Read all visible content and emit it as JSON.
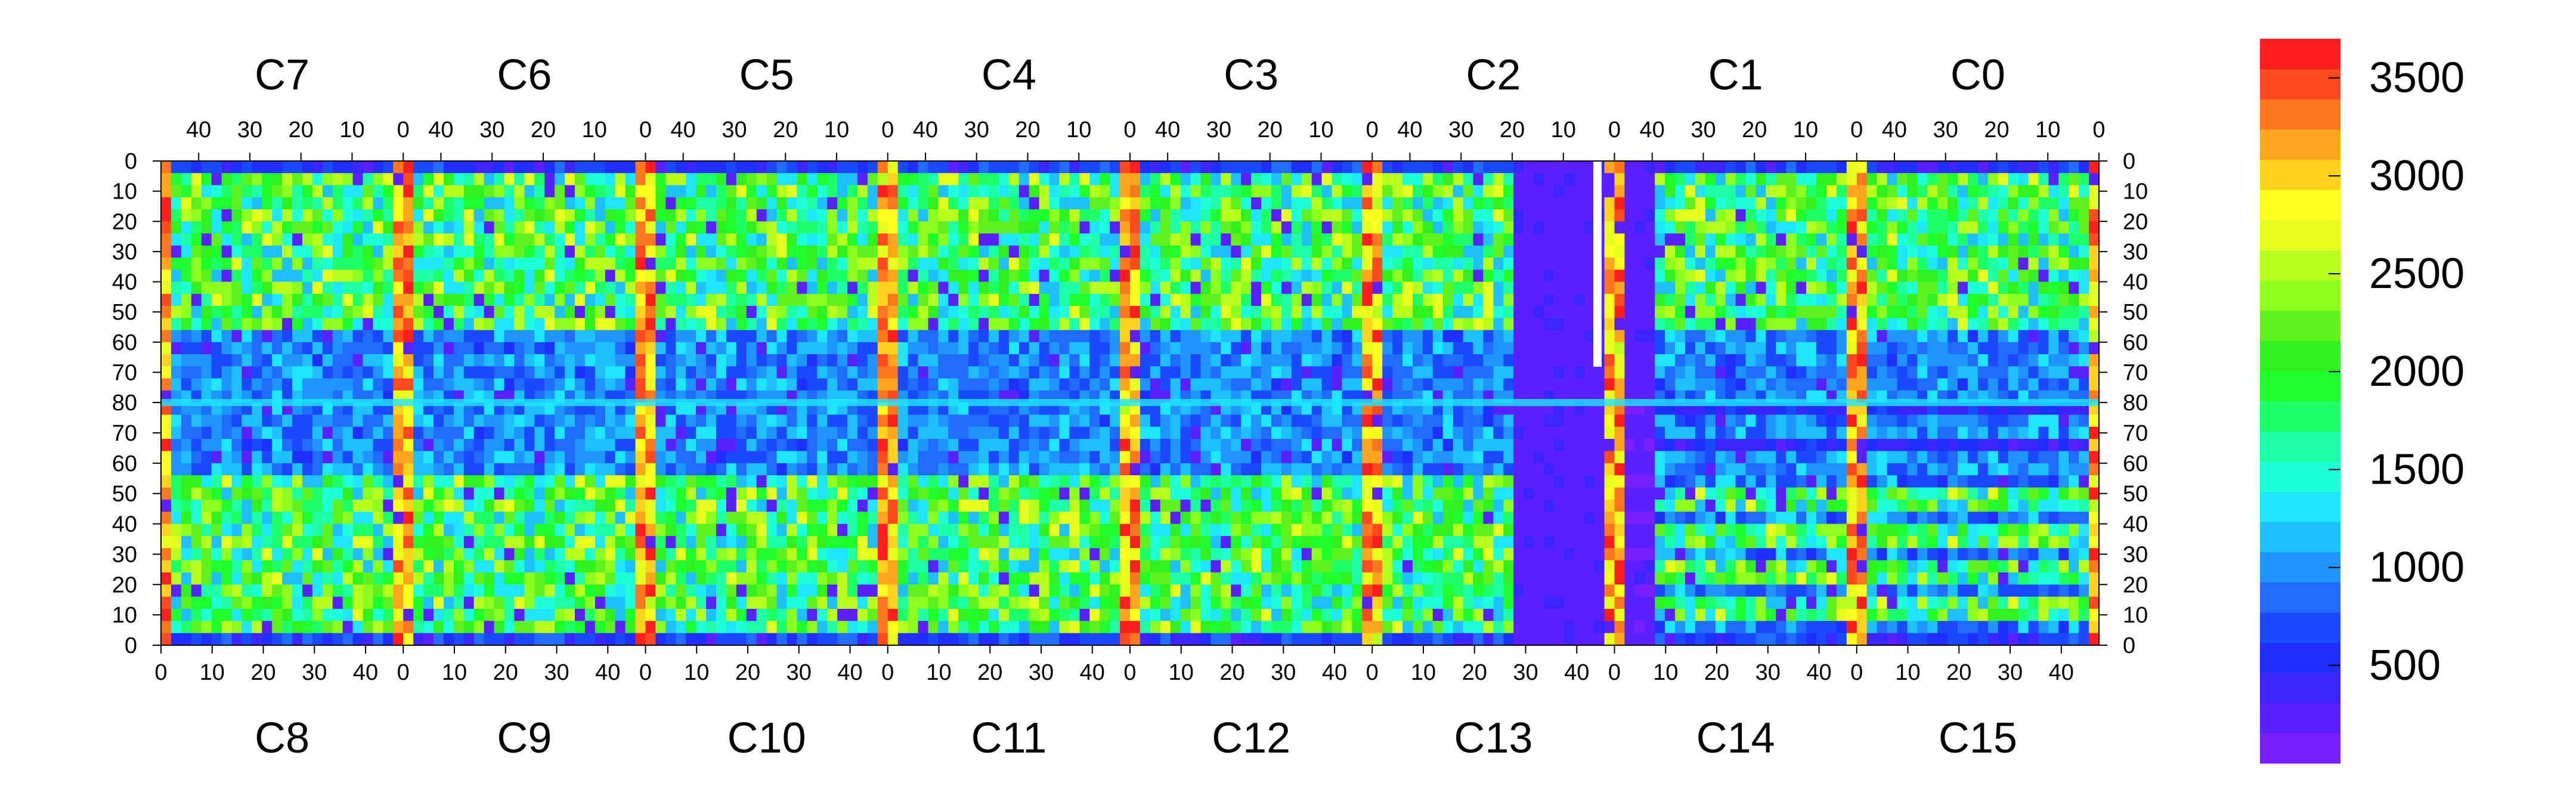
{
  "chart_data": {
    "type": "heatmap",
    "title": "",
    "description_note": "",
    "top_chips": [
      "C7",
      "C6",
      "C5",
      "C4",
      "C3",
      "C2",
      "C1",
      "C0"
    ],
    "bottom_chips": [
      "C8",
      "C9",
      "C10",
      "C11",
      "C12",
      "C13",
      "C14",
      "C15"
    ],
    "top_x_ticks": [
      "40",
      "30",
      "20",
      "10",
      "0"
    ],
    "bottom_x_ticks": [
      "0",
      "10",
      "20",
      "30",
      "40"
    ],
    "y_ticks_upper": [
      "0",
      "10",
      "20",
      "30",
      "40",
      "50",
      "60",
      "70",
      "80"
    ],
    "y_ticks_lower": [
      "70",
      "60",
      "50",
      "40",
      "30",
      "20",
      "10",
      "0"
    ],
    "colorbar": {
      "ticks": [
        "500",
        "1000",
        "1500",
        "2000",
        "2500",
        "3000",
        "3500"
      ],
      "range": [
        0,
        3700
      ],
      "colors": [
        "#7a1fff",
        "#5a20ff",
        "#3b24ff",
        "#1f2fff",
        "#1a49ff",
        "#1f6cff",
        "#1f96ff",
        "#1fc0ff",
        "#1fe6ff",
        "#1fffd9",
        "#1fffa6",
        "#1fff66",
        "#1fff2e",
        "#30f01f",
        "#5ff01f",
        "#8cff1f",
        "#b8ff1f",
        "#e6ff1f",
        "#ffff1f",
        "#ffd21f",
        "#ffa51f",
        "#ff781f",
        "#ff4b1f",
        "#ff1f1f"
      ]
    },
    "chip_maps": {
      "columns_per_chip": 48,
      "rows_per_half": 80
    }
  }
}
